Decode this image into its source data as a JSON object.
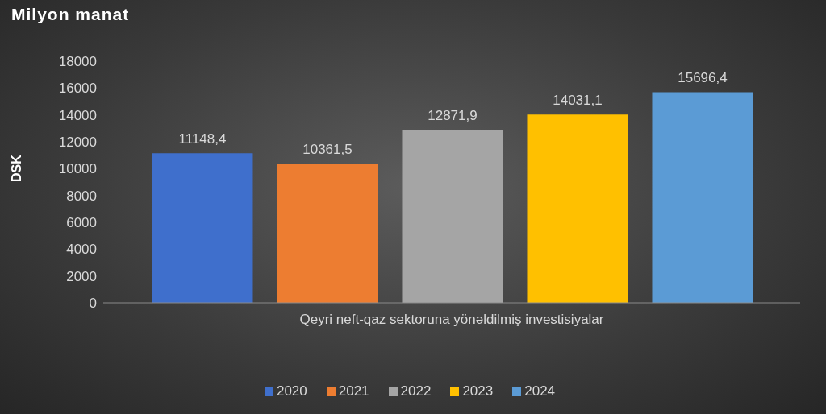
{
  "chart_data": {
    "type": "bar",
    "title": "Milyon manat",
    "ylabel": "DSK",
    "categories": [
      "Qeyri neft-qaz sektoruna yönəldilmiş investisiyalar"
    ],
    "series": [
      {
        "name": "2020",
        "color": "#3f6fcc",
        "values": [
          11148.4
        ],
        "value_labels": [
          "11148,4"
        ]
      },
      {
        "name": "2021",
        "color": "#ed7d31",
        "values": [
          10361.5
        ],
        "value_labels": [
          "10361,5"
        ]
      },
      {
        "name": "2022",
        "color": "#a5a5a5",
        "values": [
          12871.9
        ],
        "value_labels": [
          "12871,9"
        ]
      },
      {
        "name": "2023",
        "color": "#ffc000",
        "values": [
          14031.1
        ],
        "value_labels": [
          "14031,1"
        ]
      },
      {
        "name": "2024",
        "color": "#5b9bd5",
        "values": [
          15696.4
        ],
        "value_labels": [
          "15696,4"
        ]
      }
    ],
    "ylim": [
      0,
      18000
    ],
    "yticks": [
      0,
      2000,
      4000,
      6000,
      8000,
      10000,
      12000,
      14000,
      16000,
      18000
    ],
    "legend": "bottom"
  }
}
